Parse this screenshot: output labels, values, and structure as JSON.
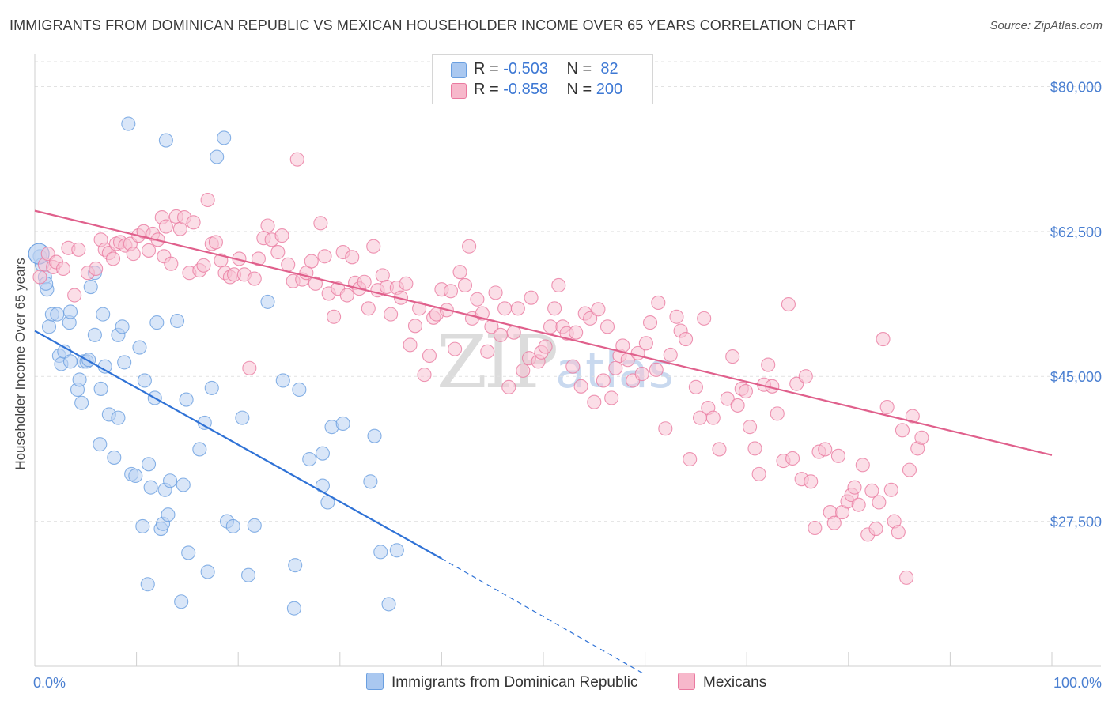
{
  "title": "IMMIGRANTS FROM DOMINICAN REPUBLIC VS MEXICAN HOUSEHOLDER INCOME OVER 65 YEARS CORRELATION CHART",
  "source": "Source: ZipAtlas.com",
  "watermark": {
    "zip": "ZIP",
    "atlas": "atlas"
  },
  "legend": {
    "rows": [
      {
        "r_label": "R = ",
        "r_value": "-0.503",
        "n_label": "N = ",
        "n_value": " 82",
        "color": "#aac8f0"
      },
      {
        "r_label": "R = ",
        "r_value": "-0.858",
        "n_label": "N = ",
        "n_value": "200",
        "color": "#f7b8cb"
      }
    ]
  },
  "chart_data": {
    "type": "scatter",
    "xlabel": "",
    "ylabel": "Householder Income Over 65 years",
    "xlim": [
      0,
      100
    ],
    "ylim": [
      10000,
      83000
    ],
    "x_tick_labels": [
      "0.0%",
      "100.0%"
    ],
    "y_ticks": [
      27500,
      45000,
      62500,
      80000
    ],
    "y_tick_labels": [
      "$27,500",
      "$45,000",
      "$62,500",
      "$80,000"
    ],
    "grid": true,
    "series": [
      {
        "name": "Immigrants from Dominican Republic",
        "color": "#6a9fe0",
        "fill": "#b9d1f2",
        "trend": {
          "x": [
            0,
            40
          ],
          "y": [
            50500,
            23000
          ],
          "dashed_to": [
            60,
            9000
          ]
        },
        "points": [
          [
            0.5,
            59.5
          ],
          [
            0.7,
            58.5
          ],
          [
            1,
            57
          ],
          [
            1.2,
            55.5
          ],
          [
            1.1,
            56.2
          ],
          [
            1.4,
            51
          ],
          [
            1.7,
            52.5
          ],
          [
            2.2,
            52.5
          ],
          [
            2.4,
            47.5
          ],
          [
            2.6,
            46.5
          ],
          [
            2.9,
            48
          ],
          [
            3.4,
            51.5
          ],
          [
            3.5,
            46.8
          ],
          [
            3.5,
            52.8
          ],
          [
            4.2,
            43.4
          ],
          [
            4.4,
            44.6
          ],
          [
            4.6,
            41.8
          ],
          [
            4.8,
            46.8
          ],
          [
            5.1,
            46.8
          ],
          [
            5.3,
            47
          ],
          [
            5.5,
            55.8
          ],
          [
            5.9,
            50
          ],
          [
            5.9,
            57.5
          ],
          [
            6.4,
            36.8
          ],
          [
            6.5,
            43.5
          ],
          [
            6.7,
            52.5
          ],
          [
            6.9,
            46.2
          ],
          [
            7.3,
            40.4
          ],
          [
            7.8,
            35.2
          ],
          [
            8.2,
            40
          ],
          [
            8.2,
            50
          ],
          [
            8.6,
            51
          ],
          [
            8.8,
            46.7
          ],
          [
            9.2,
            75.5
          ],
          [
            9.5,
            33.2
          ],
          [
            9.9,
            33
          ],
          [
            10.3,
            48.5
          ],
          [
            10.6,
            26.9
          ],
          [
            10.8,
            44.5
          ],
          [
            11.1,
            19.9
          ],
          [
            11.2,
            34.4
          ],
          [
            11.4,
            31.6
          ],
          [
            11.8,
            42.4
          ],
          [
            12,
            51.5
          ],
          [
            12.4,
            26.6
          ],
          [
            12.6,
            27.2
          ],
          [
            12.8,
            31.3
          ],
          [
            12.9,
            73.5
          ],
          [
            13.1,
            28.3
          ],
          [
            13.3,
            32.4
          ],
          [
            14,
            51.7
          ],
          [
            14.4,
            17.8
          ],
          [
            14.6,
            31.9
          ],
          [
            14.9,
            42.2
          ],
          [
            15.1,
            23.7
          ],
          [
            16.2,
            36.2
          ],
          [
            16.7,
            39.4
          ],
          [
            17,
            21.4
          ],
          [
            17.4,
            43.6
          ],
          [
            17.9,
            71.5
          ],
          [
            18.6,
            73.8
          ],
          [
            18.9,
            27.5
          ],
          [
            19.5,
            26.9
          ],
          [
            20.4,
            40
          ],
          [
            21,
            21
          ],
          [
            21.6,
            27
          ],
          [
            22.9,
            54
          ],
          [
            24.4,
            44.5
          ],
          [
            25.5,
            17
          ],
          [
            25.6,
            22.2
          ],
          [
            26,
            43.4
          ],
          [
            27,
            35
          ],
          [
            28.3,
            35.7
          ],
          [
            28.3,
            31.8
          ],
          [
            28.8,
            29.8
          ],
          [
            29.2,
            38.9
          ],
          [
            30.3,
            39.3
          ],
          [
            33,
            32.3
          ],
          [
            33.4,
            37.8
          ],
          [
            34,
            23.8
          ],
          [
            34.8,
            17.5
          ],
          [
            35.6,
            24
          ]
        ]
      },
      {
        "name": "Mexicans",
        "color": "#ea7aa0",
        "fill": "#f8c3d3",
        "trend": {
          "x": [
            0,
            100
          ],
          "y": [
            65000,
            35500
          ]
        },
        "points": [
          [
            0.5,
            57
          ],
          [
            1,
            58.5
          ],
          [
            1.3,
            59.8
          ],
          [
            1.8,
            58.2
          ],
          [
            2.1,
            58.8
          ],
          [
            2.8,
            58
          ],
          [
            3.3,
            60.5
          ],
          [
            3.9,
            54.8
          ],
          [
            4.3,
            60.3
          ],
          [
            5.2,
            57.5
          ],
          [
            6,
            58
          ],
          [
            6.5,
            61.5
          ],
          [
            6.9,
            60.3
          ],
          [
            7.3,
            59.9
          ],
          [
            7.7,
            59.2
          ],
          [
            8,
            61
          ],
          [
            8.4,
            61.2
          ],
          [
            8.9,
            60.8
          ],
          [
            9.4,
            61
          ],
          [
            9.7,
            59.8
          ],
          [
            10.2,
            62
          ],
          [
            10.7,
            62.5
          ],
          [
            11.2,
            60.2
          ],
          [
            11.6,
            62.2
          ],
          [
            12.1,
            61.5
          ],
          [
            12.5,
            64.2
          ],
          [
            12.7,
            59.5
          ],
          [
            12.9,
            63.1
          ],
          [
            13.4,
            58.6
          ],
          [
            13.9,
            64.3
          ],
          [
            14.3,
            62.8
          ],
          [
            14.7,
            64.2
          ],
          [
            15.2,
            57.5
          ],
          [
            15.6,
            63.6
          ],
          [
            16.2,
            57.8
          ],
          [
            16.6,
            58.4
          ],
          [
            17,
            66.3
          ],
          [
            17.4,
            61
          ],
          [
            17.8,
            61.2
          ],
          [
            18.3,
            59
          ],
          [
            18.7,
            57.5
          ],
          [
            19.2,
            57
          ],
          [
            19.6,
            57.3
          ],
          [
            20.1,
            59.2
          ],
          [
            20.6,
            57.3
          ],
          [
            21.1,
            46
          ],
          [
            21.6,
            56.8
          ],
          [
            22,
            59.2
          ],
          [
            22.5,
            61.7
          ],
          [
            22.9,
            63.2
          ],
          [
            23.3,
            61.5
          ],
          [
            23.9,
            60
          ],
          [
            24.3,
            62
          ],
          [
            24.9,
            58.5
          ],
          [
            25.4,
            56.5
          ],
          [
            25.8,
            71.2
          ],
          [
            26.3,
            56.7
          ],
          [
            26.7,
            57.5
          ],
          [
            27.2,
            58.9
          ],
          [
            27.6,
            56.2
          ],
          [
            28.1,
            63.5
          ],
          [
            28.5,
            59.5
          ],
          [
            28.9,
            55
          ],
          [
            29.4,
            52.2
          ],
          [
            29.8,
            55.6
          ],
          [
            30.3,
            60
          ],
          [
            30.7,
            54.8
          ],
          [
            31.2,
            59.4
          ],
          [
            31.5,
            56.3
          ],
          [
            31.9,
            55.6
          ],
          [
            32.4,
            56.4
          ],
          [
            32.8,
            53.2
          ],
          [
            33.3,
            60.7
          ],
          [
            33.7,
            55.4
          ],
          [
            34.2,
            57.2
          ],
          [
            34.6,
            55.8
          ],
          [
            35,
            52.5
          ],
          [
            35.6,
            55.7
          ],
          [
            36,
            54.5
          ],
          [
            36.5,
            56.2
          ],
          [
            36.9,
            48.8
          ],
          [
            37.4,
            51.1
          ],
          [
            37.8,
            53.2
          ],
          [
            38.3,
            45.2
          ],
          [
            38.8,
            47.5
          ],
          [
            39.2,
            52.1
          ],
          [
            39.5,
            52.5
          ],
          [
            40,
            55.5
          ],
          [
            40.5,
            53
          ],
          [
            40.9,
            55.3
          ],
          [
            41.3,
            48.3
          ],
          [
            41.8,
            57.6
          ],
          [
            42.3,
            56
          ],
          [
            42.7,
            60.7
          ],
          [
            43,
            52
          ],
          [
            43.5,
            54.3
          ],
          [
            44,
            52.6
          ],
          [
            44.5,
            48
          ],
          [
            44.9,
            51
          ],
          [
            45.3,
            55.1
          ],
          [
            45.8,
            50
          ],
          [
            46.2,
            53.2
          ],
          [
            46.6,
            43.7
          ],
          [
            47.1,
            50.3
          ],
          [
            47.5,
            53.2
          ],
          [
            48,
            45.7
          ],
          [
            48.6,
            47.2
          ],
          [
            48.8,
            54.5
          ],
          [
            49.5,
            46.8
          ],
          [
            49.8,
            47.9
          ],
          [
            50.2,
            48.6
          ],
          [
            50.7,
            51
          ],
          [
            51.1,
            53.2
          ],
          [
            51.5,
            56
          ],
          [
            51.9,
            51
          ],
          [
            52.3,
            50.2
          ],
          [
            52.9,
            46.2
          ],
          [
            53.2,
            50.3
          ],
          [
            53.7,
            43.8
          ],
          [
            54.1,
            52.6
          ],
          [
            54.6,
            52
          ],
          [
            55,
            41.9
          ],
          [
            55.4,
            53.1
          ],
          [
            55.9,
            44.5
          ],
          [
            56.3,
            51
          ],
          [
            56.7,
            42.4
          ],
          [
            57.1,
            46
          ],
          [
            57.5,
            47.5
          ],
          [
            57.8,
            48.7
          ],
          [
            58.3,
            47
          ],
          [
            58.8,
            44.5
          ],
          [
            59.3,
            47.8
          ],
          [
            59.7,
            45.3
          ],
          [
            60.1,
            49
          ],
          [
            60.5,
            51.5
          ],
          [
            61.1,
            45.8
          ],
          [
            61.3,
            53.9
          ],
          [
            62,
            38.7
          ],
          [
            62.5,
            47.6
          ],
          [
            63.1,
            52.2
          ],
          [
            63.5,
            50.5
          ],
          [
            64,
            49.5
          ],
          [
            64.4,
            35
          ],
          [
            65,
            43.7
          ],
          [
            65.4,
            40
          ],
          [
            65.8,
            52
          ],
          [
            66.2,
            41.2
          ],
          [
            66.7,
            40
          ],
          [
            67.3,
            36.2
          ],
          [
            68.1,
            42.3
          ],
          [
            68.6,
            47.4
          ],
          [
            69.1,
            41.5
          ],
          [
            69.5,
            43.5
          ],
          [
            69.9,
            43.2
          ],
          [
            70.3,
            38.9
          ],
          [
            70.8,
            36.3
          ],
          [
            71.2,
            33.2
          ],
          [
            71.7,
            44
          ],
          [
            72.1,
            46.4
          ],
          [
            72.5,
            43.8
          ],
          [
            73,
            40.5
          ],
          [
            73.6,
            34.8
          ],
          [
            74.1,
            53.7
          ],
          [
            74.5,
            35.1
          ],
          [
            74.9,
            44.1
          ],
          [
            75.4,
            32.6
          ],
          [
            75.8,
            45
          ],
          [
            76.3,
            32.3
          ],
          [
            76.7,
            26.7
          ],
          [
            77.1,
            35.9
          ],
          [
            77.7,
            36.2
          ],
          [
            78.2,
            28.6
          ],
          [
            78.6,
            27.3
          ],
          [
            79,
            35.4
          ],
          [
            79.4,
            28.6
          ],
          [
            79.9,
            29.9
          ],
          [
            80.3,
            30.7
          ],
          [
            80.6,
            31.6
          ],
          [
            81,
            29.5
          ],
          [
            81.4,
            34.3
          ],
          [
            81.9,
            25.9
          ],
          [
            82.3,
            31.2
          ],
          [
            82.7,
            26.6
          ],
          [
            83,
            29.8
          ],
          [
            83.4,
            49.5
          ],
          [
            83.8,
            41.3
          ],
          [
            84.2,
            31.3
          ],
          [
            84.5,
            27.5
          ],
          [
            84.9,
            26.2
          ],
          [
            85.3,
            38.5
          ],
          [
            85.7,
            20.7
          ],
          [
            86,
            33.7
          ],
          [
            86.3,
            40.2
          ],
          [
            86.8,
            36.3
          ],
          [
            87.2,
            37.6
          ]
        ]
      }
    ]
  },
  "bottom_legend": {
    "series1": {
      "label": "Immigrants from Dominican Republic",
      "color": "#aac8f0"
    },
    "series2": {
      "label": "Mexicans",
      "color": "#f7b8cb"
    }
  }
}
